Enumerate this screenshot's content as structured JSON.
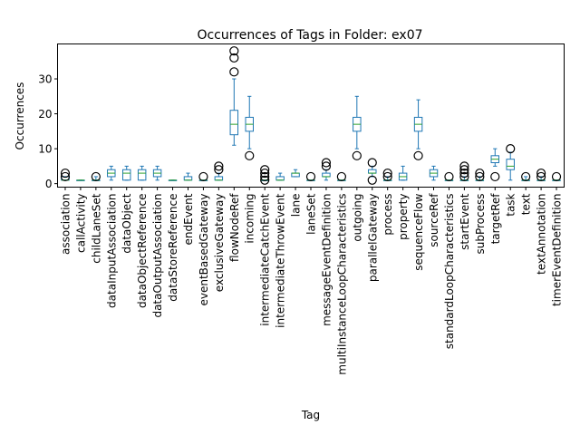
{
  "chart_data": {
    "type": "box",
    "title": "Occurrences of Tags in Folder: ex07",
    "xlabel": "Tag",
    "ylabel": "Occurrences",
    "ylim": [
      -1,
      40
    ],
    "yticks": [
      0,
      10,
      20,
      30
    ],
    "grid": false,
    "colors": {
      "box": "#1f77b4",
      "median": "#2ca02c",
      "flier": "#000000"
    },
    "categories": [
      "association",
      "callActivity",
      "childLaneSet",
      "dataInputAssociation",
      "dataObject",
      "dataObjectReference",
      "dataOutputAssociation",
      "dataStoreReference",
      "endEvent",
      "eventBasedGateway",
      "exclusiveGateway",
      "flowNodeRef",
      "incoming",
      "intermediateCatchEvent",
      "intermediateThrowEvent",
      "lane",
      "laneSet",
      "messageEventDefinition",
      "multiInstanceLoopCharacteristics",
      "outgoing",
      "parallelGateway",
      "process",
      "property",
      "sequenceFlow",
      "sourceRef",
      "standardLoopCharacteristics",
      "startEvent",
      "subProcess",
      "targetRef",
      "task",
      "text",
      "textAnnotation",
      "timerEventDefinition"
    ],
    "boxes": [
      {
        "whislo": 1,
        "q1": 1,
        "med": 1,
        "q3": 2,
        "whishi": 2,
        "fliers": [
          2,
          3
        ]
      },
      {
        "whislo": 1,
        "q1": 1,
        "med": 1,
        "q3": 1,
        "whishi": 1,
        "fliers": []
      },
      {
        "whislo": 1,
        "q1": 1,
        "med": 1,
        "q3": 1,
        "whishi": 2,
        "fliers": [
          2
        ]
      },
      {
        "whislo": 1,
        "q1": 2,
        "med": 3,
        "q3": 4,
        "whishi": 5,
        "fliers": []
      },
      {
        "whislo": 1,
        "q1": 1,
        "med": 3,
        "q3": 4,
        "whishi": 5,
        "fliers": []
      },
      {
        "whislo": 1,
        "q1": 1,
        "med": 3,
        "q3": 4,
        "whishi": 5,
        "fliers": []
      },
      {
        "whislo": 1,
        "q1": 2,
        "med": 3,
        "q3": 4,
        "whishi": 5,
        "fliers": []
      },
      {
        "whislo": 1,
        "q1": 1,
        "med": 1,
        "q3": 1,
        "whishi": 1,
        "fliers": []
      },
      {
        "whislo": 1,
        "q1": 1,
        "med": 1,
        "q3": 2,
        "whishi": 3,
        "fliers": []
      },
      {
        "whislo": 1,
        "q1": 1,
        "med": 1,
        "q3": 1,
        "whishi": 1,
        "fliers": [
          2
        ]
      },
      {
        "whislo": 1,
        "q1": 1,
        "med": 1,
        "q3": 2,
        "whishi": 3,
        "fliers": [
          4,
          5
        ]
      },
      {
        "whislo": 11,
        "q1": 14,
        "med": 17,
        "q3": 21,
        "whishi": 30,
        "fliers": [
          32,
          36,
          38
        ]
      },
      {
        "whislo": 10,
        "q1": 15,
        "med": 17,
        "q3": 19,
        "whishi": 25,
        "fliers": [
          8
        ]
      },
      {
        "whislo": 1,
        "q1": 1,
        "med": 1,
        "q3": 1,
        "whishi": 1,
        "fliers": [
          1,
          2,
          3,
          4
        ]
      },
      {
        "whislo": 1,
        "q1": 1,
        "med": 1,
        "q3": 2,
        "whishi": 3,
        "fliers": []
      },
      {
        "whislo": 2,
        "q1": 2,
        "med": 3,
        "q3": 3,
        "whishi": 4,
        "fliers": []
      },
      {
        "whislo": 1,
        "q1": 1,
        "med": 1,
        "q3": 1,
        "whishi": 1,
        "fliers": [
          2
        ]
      },
      {
        "whislo": 1,
        "q1": 2,
        "med": 2,
        "q3": 3,
        "whishi": 4,
        "fliers": [
          5,
          6
        ]
      },
      {
        "whislo": 1,
        "q1": 1,
        "med": 1,
        "q3": 1,
        "whishi": 1,
        "fliers": [
          2
        ]
      },
      {
        "whislo": 10,
        "q1": 15,
        "med": 17,
        "q3": 19,
        "whishi": 25,
        "fliers": [
          8
        ]
      },
      {
        "whislo": 2,
        "q1": 3,
        "med": 3,
        "q3": 4,
        "whishi": 5,
        "fliers": [
          1,
          6
        ]
      },
      {
        "whislo": 1,
        "q1": 1,
        "med": 1,
        "q3": 1,
        "whishi": 2,
        "fliers": [
          2,
          3
        ]
      },
      {
        "whislo": 1,
        "q1": 1,
        "med": 2,
        "q3": 3,
        "whishi": 5,
        "fliers": []
      },
      {
        "whislo": 10,
        "q1": 15,
        "med": 17,
        "q3": 19,
        "whishi": 24,
        "fliers": [
          8
        ]
      },
      {
        "whislo": 1,
        "q1": 2,
        "med": 3,
        "q3": 4,
        "whishi": 5,
        "fliers": []
      },
      {
        "whislo": 1,
        "q1": 1,
        "med": 1,
        "q3": 1,
        "whishi": 1,
        "fliers": [
          2
        ]
      },
      {
        "whislo": 1,
        "q1": 1,
        "med": 1,
        "q3": 1,
        "whishi": 2,
        "fliers": [
          2,
          3,
          4,
          5
        ]
      },
      {
        "whislo": 1,
        "q1": 1,
        "med": 1,
        "q3": 1,
        "whishi": 2,
        "fliers": [
          2,
          3
        ]
      },
      {
        "whislo": 5,
        "q1": 6,
        "med": 7,
        "q3": 8,
        "whishi": 10,
        "fliers": [
          2
        ]
      },
      {
        "whislo": 1,
        "q1": 4,
        "med": 5,
        "q3": 7,
        "whishi": 9,
        "fliers": [
          10
        ]
      },
      {
        "whislo": 1,
        "q1": 1,
        "med": 1,
        "q3": 1,
        "whishi": 2,
        "fliers": [
          2
        ]
      },
      {
        "whislo": 1,
        "q1": 1,
        "med": 1,
        "q3": 1,
        "whishi": 2,
        "fliers": [
          2,
          3
        ]
      },
      {
        "whislo": 1,
        "q1": 1,
        "med": 1,
        "q3": 1,
        "whishi": 1,
        "fliers": [
          2
        ]
      }
    ]
  }
}
